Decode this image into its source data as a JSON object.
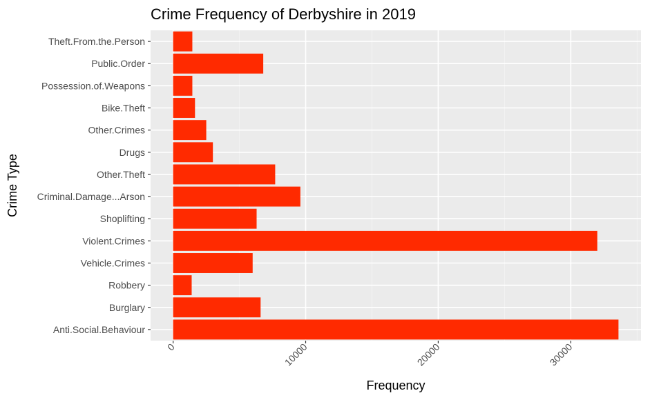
{
  "chart_data": {
    "type": "bar",
    "orientation": "horizontal",
    "title": "Crime Frequency of Derbyshire in 2019",
    "xlabel": "Frequency",
    "ylabel": "Crime Type",
    "categories": [
      "Anti.Social.Behaviour",
      "Burglary",
      "Robbery",
      "Vehicle.Crimes",
      "Violent.Crimes",
      "Shoplifting",
      "Criminal.Damage...Arson",
      "Other.Theft",
      "Drugs",
      "Other.Crimes",
      "Bike.Theft",
      "Possession.of.Weapons",
      "Public.Order",
      "Theft.From.the.Person"
    ],
    "values": [
      33600,
      6600,
      1400,
      6000,
      32000,
      6300,
      9600,
      7700,
      3000,
      2500,
      1650,
      1450,
      6800,
      1450
    ],
    "xlim": [
      -1700,
      35300
    ],
    "xticks": [
      0,
      10000,
      20000,
      30000
    ],
    "xtick_labels": [
      "0",
      "10000",
      "20000",
      "30000"
    ],
    "bar_color": "#ff2a00",
    "grid": true,
    "legend": "none"
  }
}
